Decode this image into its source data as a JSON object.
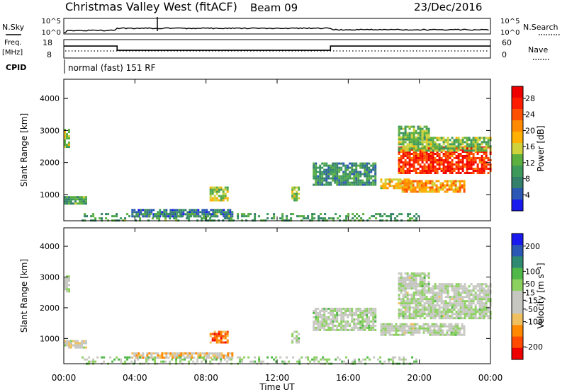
{
  "header": {
    "station": "Christmas Valley West (fitACF)",
    "beam": "Beam 09",
    "date": "23/Dec/2016"
  },
  "status_strip": {
    "nsky_label": "N.Sky",
    "nsearch_label": "N.Search",
    "noise_ticks": [
      "10^5",
      "10^0"
    ],
    "freq_label": "Freq.",
    "freq_unit": "[MHz]",
    "freq_ticks": [
      "18",
      "8"
    ],
    "nave_label": "Nave",
    "nave_ticks": [
      "60",
      "0"
    ],
    "cpid_label": "CPID",
    "cpid_text": "normal (fast) 151 RF",
    "freq_steps": [
      [
        0,
        14.5
      ],
      [
        3.0,
        12.2
      ],
      [
        15.0,
        12.2
      ],
      [
        15.0,
        14.5
      ],
      [
        24.0,
        14.5
      ]
    ]
  },
  "time_axis": {
    "label": "Time UT",
    "ticks": [
      "00:00",
      "04:00",
      "08:00",
      "12:00",
      "16:00",
      "20:00",
      "00:00"
    ],
    "tick_hours": [
      0,
      4,
      8,
      12,
      16,
      20,
      24
    ]
  },
  "colors": {
    "power_scale": [
      "#1a1aee",
      "#2a58b4",
      "#34806a",
      "#3d9a5a",
      "#5cb040",
      "#cfd23a",
      "#ffb000",
      "#ff8a00",
      "#ff5000",
      "#ff1d00",
      "#ee0000"
    ],
    "velocity_scale": [
      "#ee0000",
      "#ff4a00",
      "#ff8800",
      "#f0c060",
      "#c7c7c2",
      "#c7c7c2",
      "#8cd060",
      "#50b848",
      "#2f8a72",
      "#2a58b4",
      "#1a1aee"
    ]
  },
  "chart_data": [
    {
      "type": "heatmap",
      "title": "",
      "xlabel": "",
      "ylabel": "Slant Range [km]",
      "xlim": [
        0,
        24
      ],
      "ylim": [
        180,
        4600
      ],
      "yticks": [
        1000,
        2000,
        3000,
        4000
      ],
      "colorbar": {
        "label": "Power [dB]",
        "range": [
          0,
          31
        ],
        "ticks": [
          "28",
          "24",
          "20",
          "16",
          "12",
          "8",
          "4"
        ],
        "tick_values": [
          28,
          24,
          20,
          16,
          12,
          8,
          4
        ]
      },
      "regions": [
        {
          "t": [
            0.0,
            0.25
          ],
          "r": [
            2500,
            3050
          ],
          "power": 14
        },
        {
          "t": [
            0.0,
            1.2
          ],
          "r": [
            700,
            950
          ],
          "power": 10
        },
        {
          "t": [
            3.8,
            9.5
          ],
          "r": [
            350,
            550
          ],
          "power": 6
        },
        {
          "t": [
            8.2,
            9.2
          ],
          "r": [
            850,
            1250
          ],
          "power": 14
        },
        {
          "t": [
            12.8,
            13.2
          ],
          "r": [
            850,
            1250
          ],
          "power": 13
        },
        {
          "t": [
            14.0,
            17.5
          ],
          "r": [
            1300,
            2000
          ],
          "power": 9
        },
        {
          "t": [
            17.8,
            19.4
          ],
          "r": [
            1200,
            1500
          ],
          "power": 18
        },
        {
          "t": [
            19.0,
            22.5
          ],
          "r": [
            1100,
            1450
          ],
          "power": 20
        },
        {
          "t": [
            18.8,
            24.0
          ],
          "r": [
            1650,
            2500
          ],
          "power": 26
        },
        {
          "t": [
            18.8,
            24.0
          ],
          "r": [
            2400,
            2800
          ],
          "power": 13
        },
        {
          "t": [
            18.8,
            20.5
          ],
          "r": [
            2700,
            3150
          ],
          "power": 12
        },
        {
          "t": [
            1.0,
            20.0
          ],
          "r": [
            200,
            420
          ],
          "power": 10
        }
      ]
    },
    {
      "type": "heatmap",
      "title": "",
      "xlabel": "Time UT",
      "ylabel": "Slant Range [km]",
      "xlim": [
        0,
        24
      ],
      "ylim": [
        180,
        4600
      ],
      "yticks": [
        1000,
        2000,
        3000,
        4000
      ],
      "colorbar": {
        "label": "Velocity [m s⁻¹]",
        "range": [
          -250,
          250
        ],
        "ticks": [
          "200",
          "100",
          "50",
          "15",
          "-15",
          "-50",
          "-100",
          "-200"
        ],
        "tick_values": [
          200,
          100,
          50,
          15,
          -15,
          -50,
          -100,
          -200
        ]
      },
      "regions": [
        {
          "t": [
            0.0,
            0.25
          ],
          "r": [
            2500,
            3050
          ],
          "velocity": 0
        },
        {
          "t": [
            0.0,
            1.2
          ],
          "r": [
            700,
            950
          ],
          "velocity": -40
        },
        {
          "t": [
            3.8,
            9.5
          ],
          "r": [
            350,
            550
          ],
          "velocity": -80
        },
        {
          "t": [
            8.2,
            9.2
          ],
          "r": [
            850,
            1250
          ],
          "velocity": -150
        },
        {
          "t": [
            12.8,
            13.2
          ],
          "r": [
            850,
            1250
          ],
          "velocity": 0
        },
        {
          "t": [
            14.0,
            17.5
          ],
          "r": [
            1300,
            2000
          ],
          "velocity": 5
        },
        {
          "t": [
            17.8,
            22.5
          ],
          "r": [
            1100,
            1500
          ],
          "velocity": 0
        },
        {
          "t": [
            18.8,
            24.0
          ],
          "r": [
            1650,
            2800
          ],
          "velocity": 0
        },
        {
          "t": [
            18.8,
            20.5
          ],
          "r": [
            2700,
            3150
          ],
          "velocity": 0
        },
        {
          "t": [
            1.0,
            20.0
          ],
          "r": [
            200,
            420
          ],
          "velocity": 30
        }
      ]
    }
  ]
}
